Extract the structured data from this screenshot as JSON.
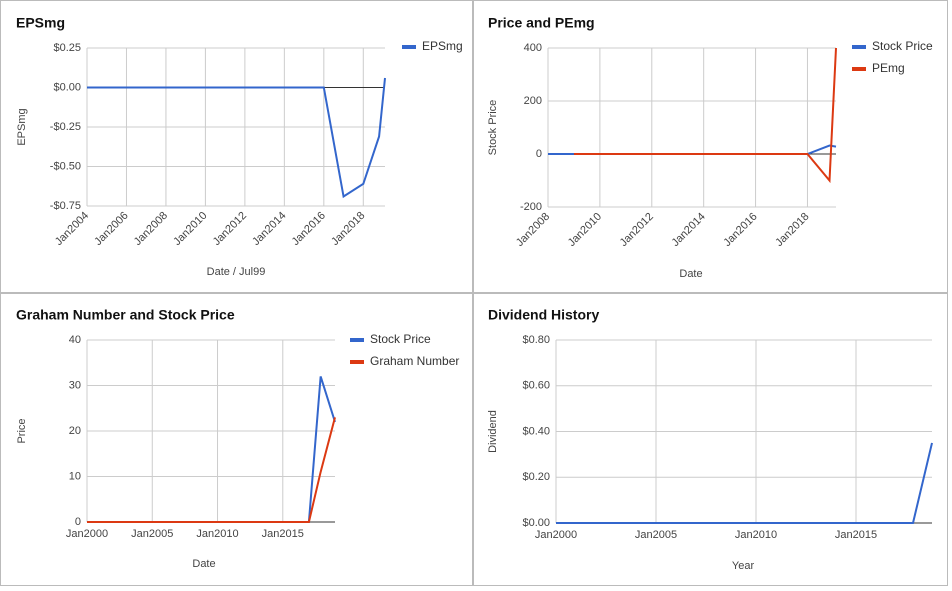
{
  "chart_data": [
    {
      "type": "line",
      "title": "EPSmg",
      "x_label": "Date / Jul99",
      "y_label": "EPSmg",
      "legend": "right",
      "grid": true,
      "x": [
        2004,
        2016,
        2017,
        2018,
        2018.8,
        2019.1
      ],
      "series": [
        {
          "name": "EPSmg",
          "color": "#3366cc",
          "values": [
            0,
            0,
            -0.69,
            -0.61,
            -0.31,
            0.06
          ]
        }
      ],
      "xlim": [
        2004,
        2019.1
      ],
      "xticks": [
        {
          "value": 2004,
          "label": "Jan2004"
        },
        {
          "value": 2006,
          "label": "Jan2006"
        },
        {
          "value": 2008,
          "label": "Jan2008"
        },
        {
          "value": 2010,
          "label": "Jan2010"
        },
        {
          "value": 2012,
          "label": "Jan2012"
        },
        {
          "value": 2014,
          "label": "Jan2014"
        },
        {
          "value": 2016,
          "label": "Jan2016"
        },
        {
          "value": 2018,
          "label": "Jan2018"
        }
      ],
      "ylim": [
        -0.75,
        0.25
      ],
      "yticks": [
        {
          "value": 0.25,
          "label": "$0.25"
        },
        {
          "value": 0,
          "label": "$0.00"
        },
        {
          "value": -0.25,
          "label": "-$0.25"
        },
        {
          "value": -0.5,
          "label": "-$0.50"
        },
        {
          "value": -0.75,
          "label": "-$0.75"
        }
      ]
    },
    {
      "type": "line",
      "title": "Price and PEmg",
      "x_label": "Date",
      "y_label": "Stock Price",
      "legend": "right",
      "grid": true,
      "x": [
        2008,
        2009,
        2018,
        2018.85,
        2019.1
      ],
      "series": [
        {
          "name": "Stock Price",
          "color": "#3366cc",
          "values": [
            0,
            0,
            0,
            32,
            28
          ]
        },
        {
          "name": "PEmg",
          "color": "#dc3912",
          "values": [
            null,
            0,
            0,
            -100,
            400
          ]
        }
      ],
      "xlim": [
        2008,
        2019.1
      ],
      "xticks": [
        {
          "value": 2008,
          "label": "Jan2008"
        },
        {
          "value": 2010,
          "label": "Jan2010"
        },
        {
          "value": 2012,
          "label": "Jan2012"
        },
        {
          "value": 2014,
          "label": "Jan2014"
        },
        {
          "value": 2016,
          "label": "Jan2016"
        },
        {
          "value": 2018,
          "label": "Jan2018"
        }
      ],
      "ylim": [
        -200,
        400
      ],
      "yticks": [
        400,
        200,
        0,
        -200
      ]
    },
    {
      "type": "line",
      "title": "Graham Number and Stock Price",
      "x_label": "Date",
      "y_label": "Price",
      "legend": "right",
      "grid": true,
      "x": [
        2000,
        2017,
        2017.9,
        2019
      ],
      "series": [
        {
          "name": "Stock Price",
          "color": "#3366cc",
          "values": [
            0,
            0,
            32,
            22
          ]
        },
        {
          "name": "Graham Number",
          "color": "#dc3912",
          "values": [
            0,
            0,
            11,
            23
          ]
        }
      ],
      "xlim": [
        2000,
        2019
      ],
      "xticks": [
        {
          "value": 2000,
          "label": "Jan2000"
        },
        {
          "value": 2005,
          "label": "Jan2005"
        },
        {
          "value": 2010,
          "label": "Jan2010"
        },
        {
          "value": 2015,
          "label": "Jan2015"
        }
      ],
      "ylim": [
        0,
        40
      ],
      "yticks": [
        40,
        30,
        20,
        10,
        0
      ]
    },
    {
      "type": "line",
      "title": "Dividend History",
      "x_label": "Year",
      "y_label": "Dividend",
      "grid": true,
      "x": [
        2000,
        2017.85,
        2018.8
      ],
      "series": [
        {
          "color": "#3366cc",
          "values": [
            0,
            0,
            0.35
          ]
        }
      ],
      "xlim": [
        2000,
        2018.8
      ],
      "xticks": [
        {
          "value": 2000,
          "label": "Jan2000"
        },
        {
          "value": 2005,
          "label": "Jan2005"
        },
        {
          "value": 2010,
          "label": "Jan2010"
        },
        {
          "value": 2015,
          "label": "Jan2015"
        }
      ],
      "ylim": [
        0,
        0.8
      ],
      "yticks": [
        {
          "value": 0.8,
          "label": "$0.80"
        },
        {
          "value": 0.6,
          "label": "$0.60"
        },
        {
          "value": 0.4,
          "label": "$0.40"
        },
        {
          "value": 0.2,
          "label": "$0.20"
        },
        {
          "value": 0,
          "label": "$0.00"
        }
      ]
    }
  ]
}
